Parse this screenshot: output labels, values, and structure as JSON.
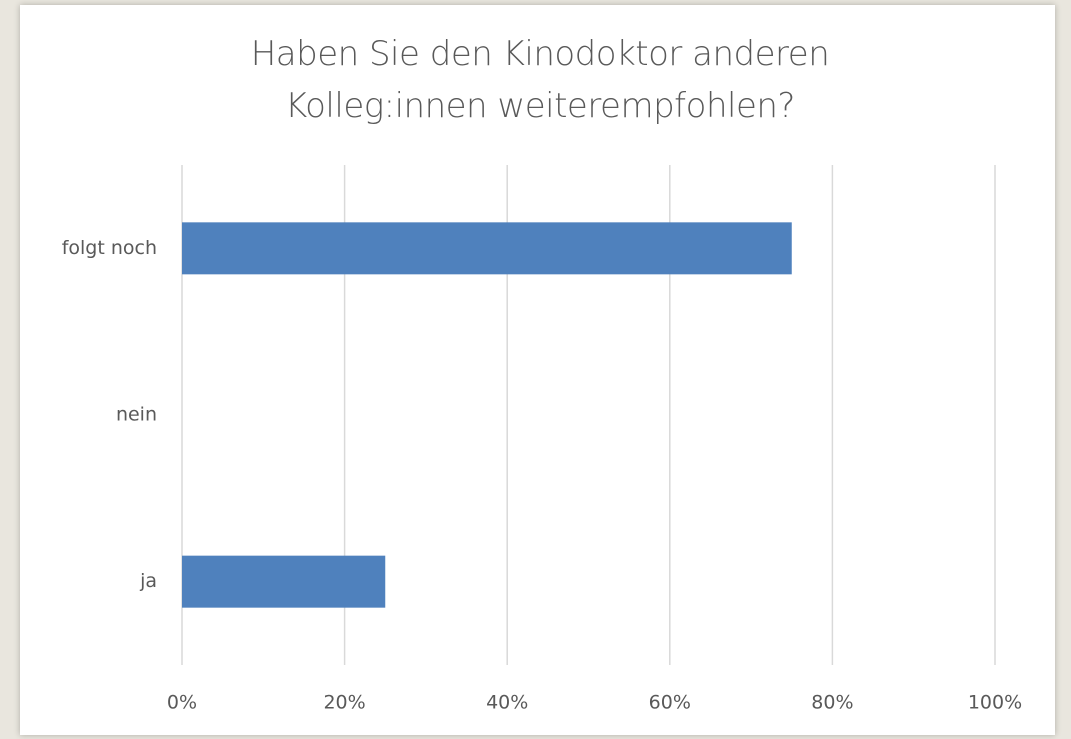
{
  "chart_data": {
    "type": "hbar",
    "title": "Haben Sie den Kinodoktor anderen Kolleg:innen weiterempfohlen?",
    "categories": [
      "folgt noch",
      "nein",
      "ja"
    ],
    "values": [
      75,
      0,
      25
    ],
    "color": "#4f81bd",
    "xlim": [
      0,
      100
    ],
    "xticks": [
      {
        "value": 0,
        "label": "0%"
      },
      {
        "value": 20,
        "label": "20%"
      },
      {
        "value": 40,
        "label": "40%"
      },
      {
        "value": 60,
        "label": "60%"
      },
      {
        "value": 80,
        "label": "80%"
      },
      {
        "value": 100,
        "label": "100%"
      }
    ],
    "grid": true
  }
}
